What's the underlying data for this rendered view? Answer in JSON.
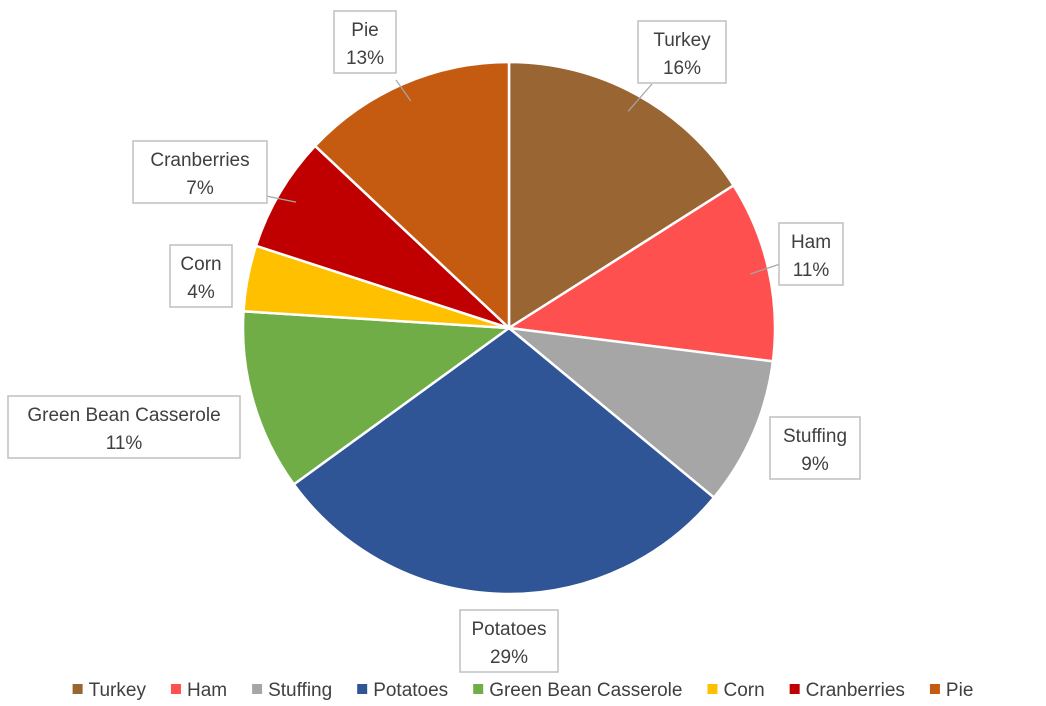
{
  "chart_data": {
    "type": "pie",
    "title": "",
    "legend_position": "bottom",
    "label_format": "category and percentage in callouts",
    "slices": [
      {
        "label": "Turkey",
        "value": 16,
        "percent_label": "16%",
        "color": "#996633"
      },
      {
        "label": "Ham",
        "value": 11,
        "percent_label": "11%",
        "color": "#ff5050"
      },
      {
        "label": "Stuffing",
        "value": 9,
        "percent_label": "9%",
        "color": "#a6a6a6"
      },
      {
        "label": "Potatoes",
        "value": 29,
        "percent_label": "29%",
        "color": "#2f5597"
      },
      {
        "label": "Green Bean Casserole",
        "value": 11,
        "percent_label": "11%",
        "color": "#70ad47"
      },
      {
        "label": "Corn",
        "value": 4,
        "percent_label": "4%",
        "color": "#ffc000"
      },
      {
        "label": "Cranberries",
        "value": 7,
        "percent_label": "7%",
        "color": "#c00000"
      },
      {
        "label": "Pie",
        "value": 13,
        "percent_label": "13%",
        "color": "#c55a11"
      }
    ]
  }
}
